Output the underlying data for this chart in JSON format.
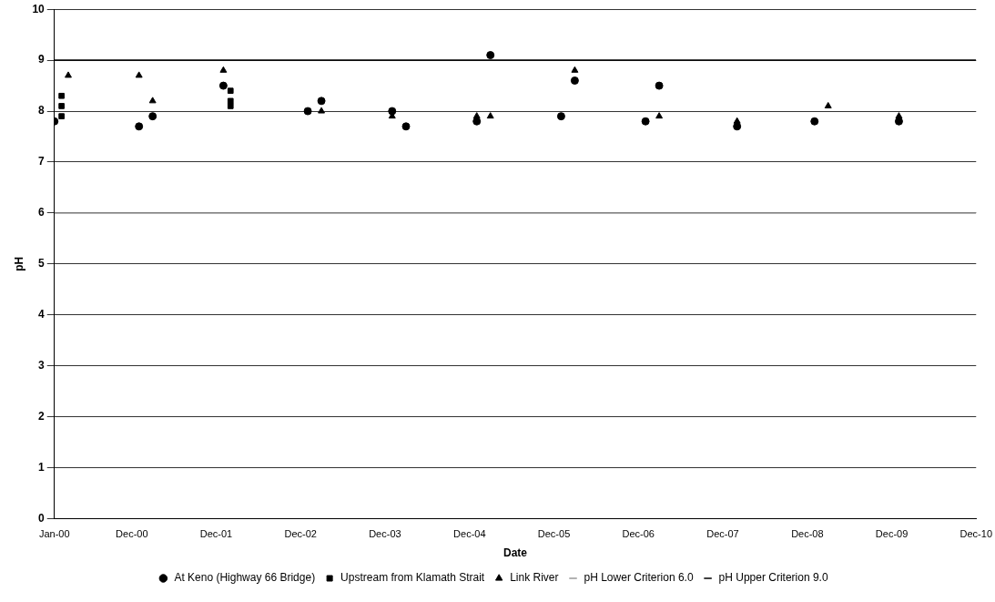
{
  "chart_data": {
    "type": "scatter",
    "xlabel": "Date",
    "ylabel": "pH",
    "xlim": [
      "2000-01",
      "2010-12"
    ],
    "xticks": [
      {
        "value": "2000-01",
        "label": "Jan-00"
      },
      {
        "value": "2000-12",
        "label": "Dec-00"
      },
      {
        "value": "2001-12",
        "label": "Dec-01"
      },
      {
        "value": "2002-12",
        "label": "Dec-02"
      },
      {
        "value": "2003-12",
        "label": "Dec-03"
      },
      {
        "value": "2004-12",
        "label": "Dec-04"
      },
      {
        "value": "2005-12",
        "label": "Dec-05"
      },
      {
        "value": "2006-12",
        "label": "Dec-06"
      },
      {
        "value": "2007-12",
        "label": "Dec-07"
      },
      {
        "value": "2008-12",
        "label": "Dec-08"
      },
      {
        "value": "2009-12",
        "label": "Dec-09"
      },
      {
        "value": "2010-12",
        "label": "Dec-10"
      }
    ],
    "ylim": [
      0,
      10
    ],
    "yticks": [
      0,
      1,
      2,
      3,
      4,
      5,
      6,
      7,
      8,
      9,
      10
    ],
    "grid": "y",
    "legend": "bottom",
    "series": [
      {
        "name": "At Keno (Highway 66 Bridge)",
        "color": "#000000",
        "marker": "circle",
        "x": [
          "2000-01",
          "2001-01",
          "2001-03",
          "2002-01",
          "2003-01",
          "2003-03",
          "2004-01",
          "2004-03",
          "2005-01",
          "2005-03",
          "2006-01",
          "2006-03",
          "2007-01",
          "2007-03",
          "2008-02",
          "2009-01",
          "2010-01"
        ],
        "values": [
          7.8,
          7.7,
          7.9,
          8.5,
          8.0,
          8.2,
          8.0,
          7.7,
          7.8,
          9.1,
          7.9,
          8.6,
          7.8,
          8.5,
          7.7,
          7.8,
          7.8
        ]
      },
      {
        "name": "Upstream from Klamath Strait",
        "color": "#000000",
        "marker": "square",
        "x": [
          "2000-02",
          "2000-02",
          "2000-02",
          "2002-02",
          "2002-02",
          "2002-02"
        ],
        "values": [
          8.3,
          8.1,
          7.9,
          8.4,
          8.2,
          8.1
        ]
      },
      {
        "name": "Link River",
        "color": "#000000",
        "marker": "triangle",
        "x": [
          "2000-03",
          "2001-01",
          "2001-03",
          "2002-01",
          "2003-03",
          "2004-01",
          "2005-01",
          "2005-03",
          "2006-03",
          "2007-03",
          "2008-02",
          "2009-03",
          "2010-01"
        ],
        "values": [
          8.7,
          8.7,
          8.2,
          8.8,
          8.0,
          7.9,
          7.9,
          7.9,
          8.8,
          7.9,
          7.8,
          8.1,
          7.9
        ]
      }
    ],
    "ref_lines": [
      {
        "axis": "y",
        "value": 6,
        "label": "pH Lower Criterion 6.0",
        "color": "#999999"
      },
      {
        "axis": "y",
        "value": 9,
        "label": "pH Upper Criterion 9.0",
        "color": "#000000"
      }
    ]
  }
}
